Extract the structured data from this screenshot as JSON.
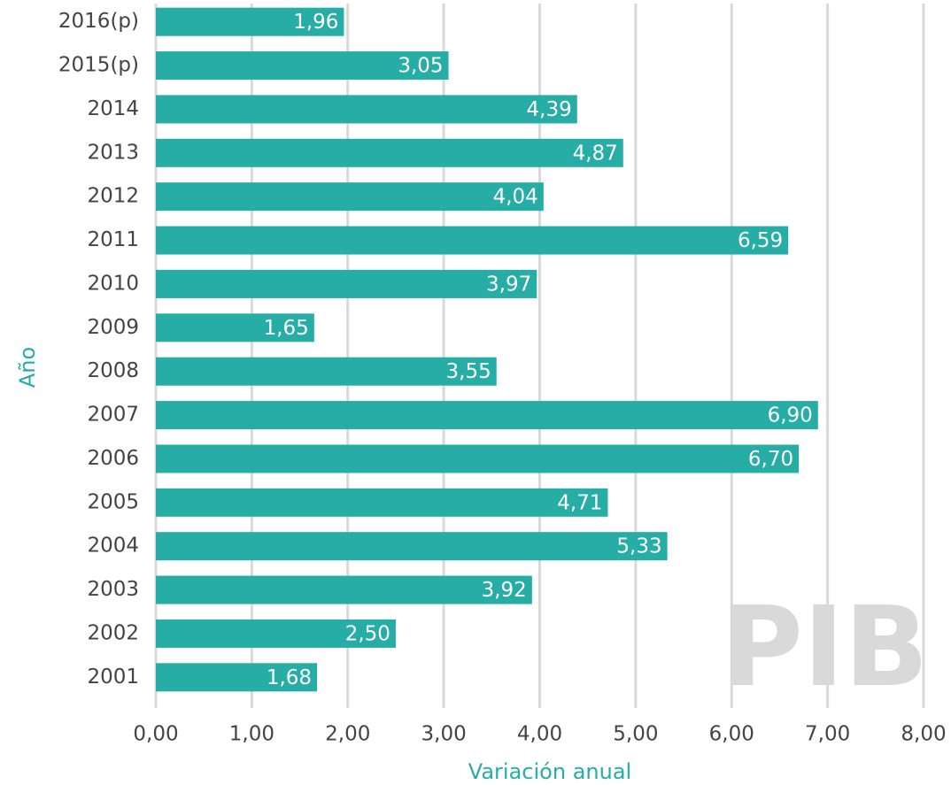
{
  "chart_data": {
    "type": "bar",
    "orientation": "horizontal",
    "categories": [
      "2016(p)",
      "2015(p)",
      "2014",
      "2013",
      "2012",
      "2011",
      "2010",
      "2009",
      "2008",
      "2007",
      "2006",
      "2005",
      "2004",
      "2003",
      "2002",
      "2001"
    ],
    "values": [
      1.96,
      3.05,
      4.39,
      4.87,
      4.04,
      6.59,
      3.97,
      1.65,
      3.55,
      6.9,
      6.7,
      4.71,
      5.33,
      3.92,
      2.5,
      1.68
    ],
    "value_labels": [
      "1,96",
      "3,05",
      "4,39",
      "4,87",
      "4,04",
      "6,59",
      "3,97",
      "1,65",
      "3,55",
      "6,90",
      "6,70",
      "4,71",
      "5,33",
      "3,92",
      "2,50",
      "1,68"
    ],
    "color": "#26ada5",
    "xlim": [
      0,
      8
    ],
    "xticks": [
      {
        "value": 0,
        "label": "0,00"
      },
      {
        "value": 1,
        "label": "1,00"
      },
      {
        "value": 2,
        "label": "2,00"
      },
      {
        "value": 3,
        "label": "3,00"
      },
      {
        "value": 4,
        "label": "4,00"
      },
      {
        "value": 5,
        "label": "5,00"
      },
      {
        "value": 6,
        "label": "6,00"
      },
      {
        "value": 7,
        "label": "7,00"
      },
      {
        "value": 8,
        "label": "8,00"
      }
    ],
    "grid": true,
    "x_label": "Variación anual",
    "y_label": "Año",
    "annotation": "PIB"
  }
}
